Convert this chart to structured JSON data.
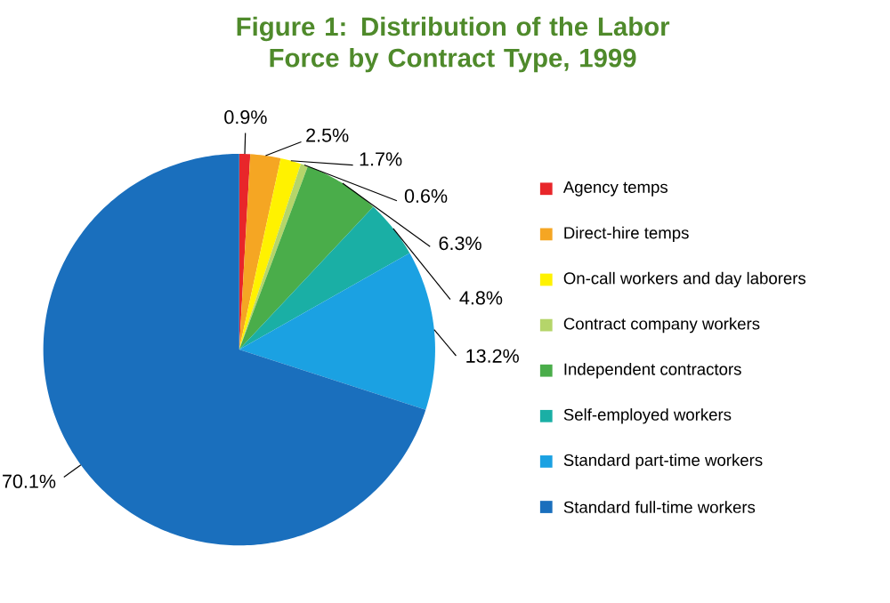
{
  "chart_data": {
    "type": "pie",
    "title": "Figure 1: Distribution of the Labor Force by Contract Type, 1999",
    "categories": [
      "Agency temps",
      "Direct-hire temps",
      "On-call workers and day laborers",
      "Contract company workers",
      "Independent contractors",
      "Self-employed workers",
      "Standard part-time workers",
      "Standard full-time workers"
    ],
    "values": [
      0.9,
      2.5,
      1.7,
      0.6,
      6.3,
      4.8,
      13.2,
      70.1
    ],
    "value_labels": [
      "0.9%",
      "2.5%",
      "1.7%",
      "0.6%",
      "6.3%",
      "4.8%",
      "13.2%",
      "70.1%"
    ],
    "colors": [
      "#e8262a",
      "#f5a623",
      "#fff200",
      "#b5d56a",
      "#4aad4a",
      "#1aafa5",
      "#1ba1e2",
      "#1a6fbd"
    ],
    "legend": "right"
  }
}
